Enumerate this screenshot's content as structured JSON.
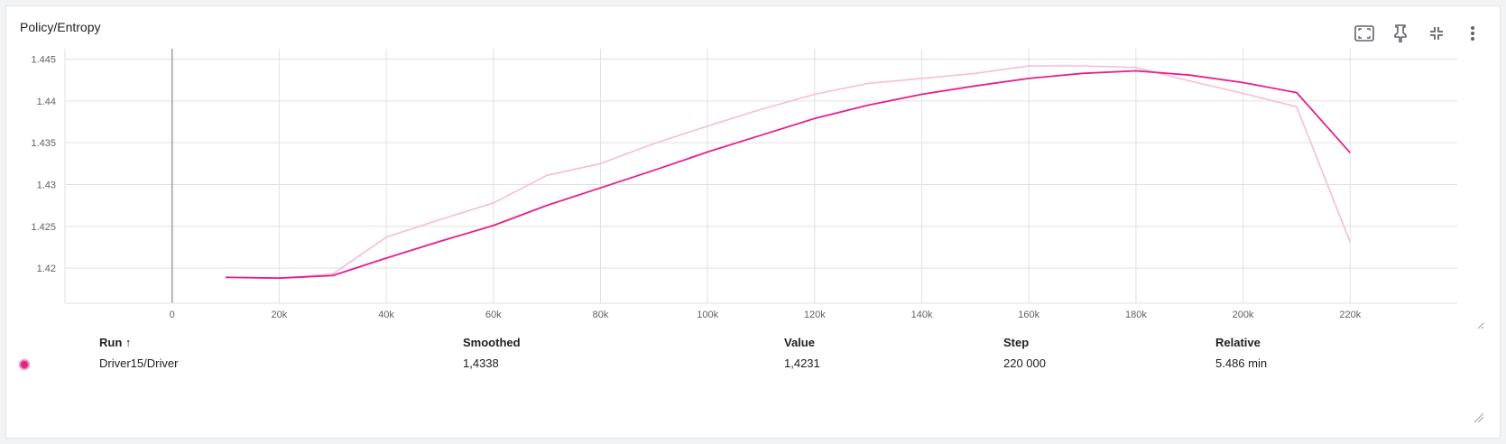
{
  "card": {
    "title": "Policy/Entropy"
  },
  "toolbar": {
    "icons": [
      "fit-domain-icon",
      "pin-icon",
      "collapse-icon",
      "more-vert-icon"
    ]
  },
  "colors": {
    "series": "#e91e8c",
    "raw": "#f8bbd9",
    "dot_fill": "#e91e8c"
  },
  "chart_data": {
    "type": "line",
    "xlim": [
      -20000,
      240000
    ],
    "ylim": [
      1.4158,
      1.4456
    ],
    "xticks": [
      0,
      20000,
      40000,
      60000,
      80000,
      100000,
      120000,
      140000,
      160000,
      180000,
      200000,
      220000
    ],
    "xtick_labels": [
      "0",
      "20k",
      "40k",
      "60k",
      "80k",
      "100k",
      "120k",
      "140k",
      "160k",
      "180k",
      "200k",
      "220k"
    ],
    "yticks": [
      1.42,
      1.425,
      1.43,
      1.435,
      1.44,
      1.445
    ],
    "ytick_labels": [
      "1.42",
      "1.425",
      "1.43",
      "1.435",
      "1.44",
      "1.445"
    ],
    "grid": true,
    "series": [
      {
        "role": "raw",
        "x": [
          10000,
          20000,
          30000,
          40000,
          50000,
          60000,
          70000,
          80000,
          90000,
          100000,
          110000,
          120000,
          130000,
          140000,
          150000,
          160000,
          170000,
          180000,
          190000,
          200000,
          210000,
          220000
        ],
        "y": [
          1.4189,
          1.4188,
          1.4193,
          1.4237,
          1.4258,
          1.4278,
          1.4311,
          1.4325,
          1.4349,
          1.437,
          1.439,
          1.4408,
          1.4421,
          1.4427,
          1.4433,
          1.4442,
          1.4442,
          1.444,
          1.4424,
          1.4409,
          1.4393,
          1.4231
        ]
      },
      {
        "role": "smoothed",
        "x": [
          10000,
          20000,
          30000,
          40000,
          50000,
          60000,
          70000,
          80000,
          90000,
          100000,
          110000,
          120000,
          130000,
          140000,
          150000,
          160000,
          170000,
          180000,
          190000,
          200000,
          210000,
          220000
        ],
        "y": [
          1.4189,
          1.4188,
          1.4191,
          1.4212,
          1.4232,
          1.4251,
          1.4275,
          1.4296,
          1.4317,
          1.4339,
          1.4359,
          1.4379,
          1.4395,
          1.4408,
          1.4418,
          1.4427,
          1.4433,
          1.4436,
          1.4431,
          1.4422,
          1.441,
          1.4338
        ]
      }
    ]
  },
  "table": {
    "headers": {
      "run": "Run ↑",
      "smoothed": "Smoothed",
      "value": "Value",
      "step": "Step",
      "relative": "Relative"
    },
    "rows": [
      {
        "run": "Driver15/Driver",
        "smoothed": "1,4338",
        "value": "1,4231",
        "step": "220 000",
        "relative": "5.486 min"
      }
    ]
  }
}
